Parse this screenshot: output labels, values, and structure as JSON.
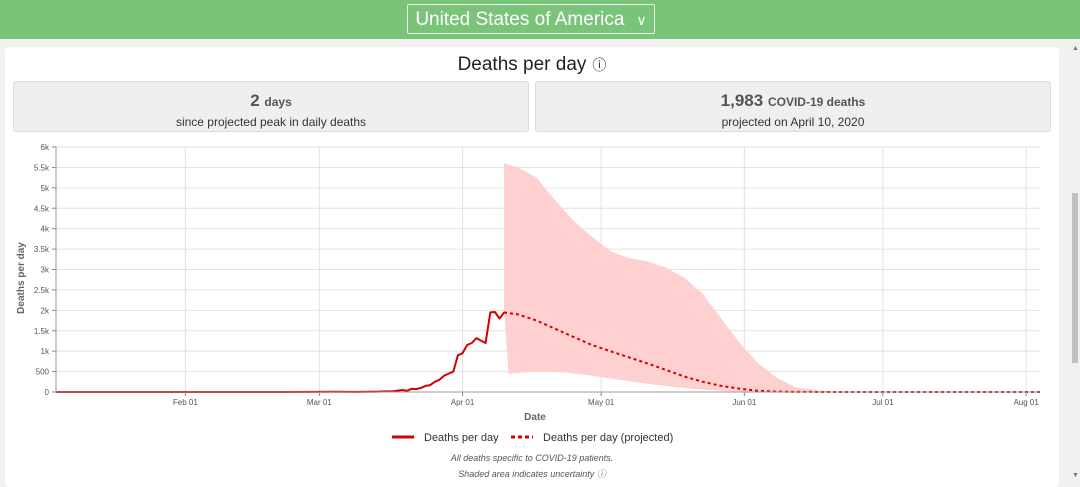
{
  "header": {
    "country": "United States of America"
  },
  "title": "Deaths per day",
  "stats": [
    {
      "value": "2",
      "unit": "days",
      "caption": "since projected peak in daily deaths"
    },
    {
      "value": "1,983",
      "unit": "COVID-19 deaths",
      "caption": "projected on April 10, 2020"
    }
  ],
  "footnotes": [
    "All deaths specific to COVID-19 patients.",
    "Shaded area indicates uncertainty"
  ],
  "colors": {
    "actual": "#d40000",
    "band": "#ffd0d0",
    "header": "#7ac47a"
  },
  "chart_data": {
    "type": "line",
    "xlabel": "Date",
    "ylabel": "Deaths per day",
    "ylim": [
      0,
      6000
    ],
    "xlim_days": [
      0,
      213
    ],
    "x_start_date": "2020-01-04",
    "yticks": [
      0,
      500,
      1000,
      1500,
      2000,
      2500,
      3000,
      3500,
      4000,
      4500,
      5000,
      5500,
      6000
    ],
    "ytick_labels": [
      "0",
      "500",
      "1k",
      "1.5k",
      "2k",
      "2.5k",
      "3k",
      "3.5k",
      "4k",
      "4.5k",
      "5k",
      "5.5k",
      "6k"
    ],
    "xticks": [
      {
        "day": 28,
        "label": "Feb 01"
      },
      {
        "day": 57,
        "label": "Mar 01"
      },
      {
        "day": 88,
        "label": "Apr 01"
      },
      {
        "day": 118,
        "label": "May 01"
      },
      {
        "day": 149,
        "label": "Jun 01"
      },
      {
        "day": 179,
        "label": "Jul 01"
      },
      {
        "day": 210,
        "label": "Aug 01"
      }
    ],
    "series": [
      {
        "name": "Deaths per day",
        "style": "solid",
        "points": [
          [
            0,
            0
          ],
          [
            50,
            0
          ],
          [
            60,
            5
          ],
          [
            65,
            3
          ],
          [
            70,
            10
          ],
          [
            73,
            20
          ],
          [
            75,
            50
          ],
          [
            76,
            30
          ],
          [
            77,
            80
          ],
          [
            78,
            70
          ],
          [
            79,
            100
          ],
          [
            80,
            150
          ],
          [
            81,
            170
          ],
          [
            82,
            250
          ],
          [
            83,
            300
          ],
          [
            84,
            400
          ],
          [
            85,
            450
          ],
          [
            86,
            500
          ],
          [
            87,
            900
          ],
          [
            88,
            950
          ],
          [
            89,
            1150
          ],
          [
            90,
            1200
          ],
          [
            91,
            1320
          ],
          [
            92,
            1260
          ],
          [
            93,
            1200
          ],
          [
            94,
            1950
          ],
          [
            95,
            1960
          ],
          [
            96,
            1800
          ],
          [
            97,
            1950
          ]
        ]
      },
      {
        "name": "Deaths per day (projected)",
        "style": "dashed",
        "points": [
          [
            97,
            1950
          ],
          [
            100,
            1900
          ],
          [
            104,
            1750
          ],
          [
            108,
            1550
          ],
          [
            112,
            1350
          ],
          [
            116,
            1150
          ],
          [
            120,
            1000
          ],
          [
            124,
            850
          ],
          [
            128,
            700
          ],
          [
            132,
            540
          ],
          [
            136,
            380
          ],
          [
            140,
            250
          ],
          [
            144,
            150
          ],
          [
            148,
            80
          ],
          [
            152,
            30
          ],
          [
            156,
            10
          ],
          [
            160,
            2
          ],
          [
            170,
            0
          ],
          [
            213,
            0
          ]
        ]
      }
    ],
    "band_upper": [
      [
        97,
        5600
      ],
      [
        100,
        5500
      ],
      [
        104,
        5250
      ],
      [
        108,
        4700
      ],
      [
        112,
        4200
      ],
      [
        116,
        3800
      ],
      [
        120,
        3450
      ],
      [
        124,
        3280
      ],
      [
        128,
        3200
      ],
      [
        132,
        3050
      ],
      [
        136,
        2800
      ],
      [
        140,
        2400
      ],
      [
        144,
        1800
      ],
      [
        148,
        1200
      ],
      [
        152,
        700
      ],
      [
        156,
        350
      ],
      [
        160,
        120
      ],
      [
        165,
        40
      ],
      [
        170,
        5
      ],
      [
        213,
        0
      ]
    ],
    "band_lower": [
      [
        97,
        1950
      ],
      [
        98,
        450
      ],
      [
        104,
        500
      ],
      [
        110,
        480
      ],
      [
        116,
        400
      ],
      [
        122,
        300
      ],
      [
        128,
        200
      ],
      [
        134,
        120
      ],
      [
        140,
        60
      ],
      [
        146,
        20
      ],
      [
        152,
        5
      ],
      [
        160,
        0
      ],
      [
        213,
        0
      ]
    ]
  }
}
